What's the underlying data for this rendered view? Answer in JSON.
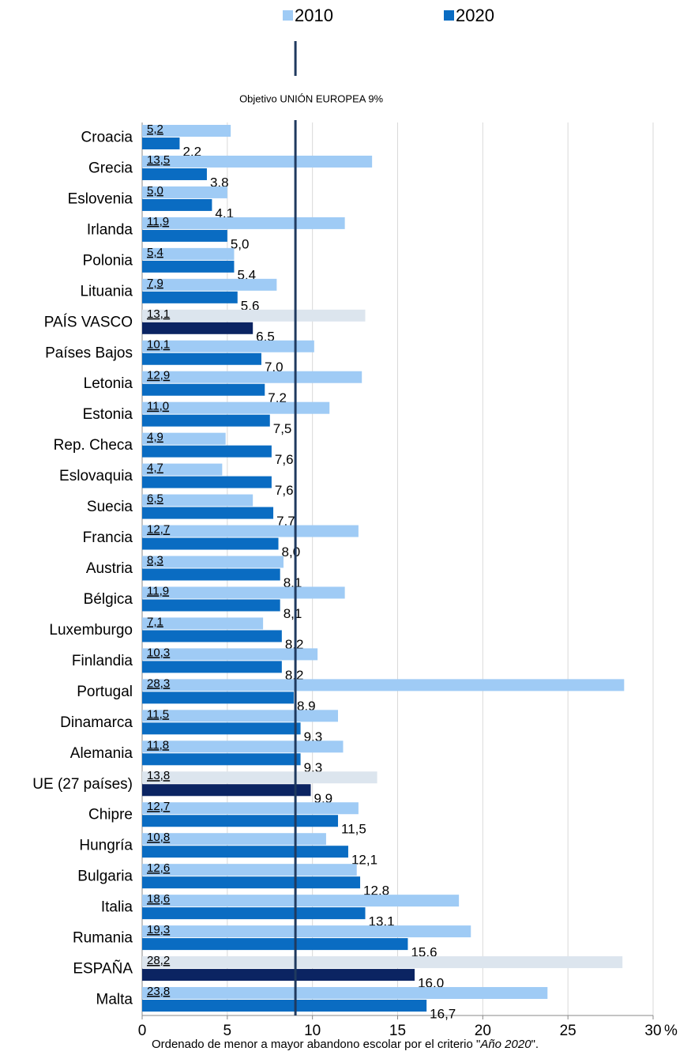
{
  "chart_data": {
    "type": "bar",
    "orientation": "horizontal",
    "categories": [
      "Croacia",
      "Grecia",
      "Eslovenia",
      "Irlanda",
      "Polonia",
      "Lituania",
      "PAÍS VASCO",
      "Países Bajos",
      "Letonia",
      "Estonia",
      "Rep. Checa",
      "Eslovaquia",
      "Suecia",
      "Francia",
      "Austria",
      "Bélgica",
      "Luxemburgo",
      "Finlandia",
      "Portugal",
      "Dinamarca",
      "Alemania",
      "UE (27 países)",
      "Chipre",
      "Hungría",
      "Bulgaria",
      "Italia",
      "Rumania",
      "ESPAÑA",
      "Malta"
    ],
    "series": [
      {
        "name": "2010",
        "color": "#9fcbf5",
        "colors": [
          "#9fcbf5",
          "#9fcbf5",
          "#9fcbf5",
          "#9fcbf5",
          "#9fcbf5",
          "#9fcbf5",
          "#dce5ee",
          "#9fcbf5",
          "#9fcbf5",
          "#9fcbf5",
          "#9fcbf5",
          "#9fcbf5",
          "#9fcbf5",
          "#9fcbf5",
          "#9fcbf5",
          "#9fcbf5",
          "#9fcbf5",
          "#9fcbf5",
          "#9fcbf5",
          "#9fcbf5",
          "#9fcbf5",
          "#dce5ee",
          "#9fcbf5",
          "#9fcbf5",
          "#9fcbf5",
          "#9fcbf5",
          "#9fcbf5",
          "#dce5ee",
          "#9fcbf5"
        ],
        "values": [
          5.2,
          13.5,
          5.0,
          11.9,
          5.4,
          7.9,
          13.1,
          10.1,
          12.9,
          11.0,
          4.9,
          4.7,
          6.5,
          12.7,
          8.3,
          11.9,
          7.1,
          10.3,
          28.3,
          11.5,
          11.8,
          13.8,
          12.7,
          10.8,
          12.6,
          18.6,
          19.3,
          28.2,
          23.8
        ],
        "value_labels": [
          "5,2",
          "13,5",
          "5,0",
          "11,9",
          "5,4",
          "7,9",
          "13,1",
          "10,1",
          "12,9",
          "11,0",
          "4,9",
          "4,7",
          "6,5",
          "12,7",
          "8,3",
          "11,9",
          "7,1",
          "10,3",
          "28,3",
          "11,5",
          "11,8",
          "13,8",
          "12,7",
          "10,8",
          "12,6",
          "18,6",
          "19,3",
          "28,2",
          "23,8"
        ]
      },
      {
        "name": "2020",
        "color": "#0a6cc2",
        "colors": [
          "#0a6cc2",
          "#0a6cc2",
          "#0a6cc2",
          "#0a6cc2",
          "#0a6cc2",
          "#0a6cc2",
          "#0b2462",
          "#0a6cc2",
          "#0a6cc2",
          "#0a6cc2",
          "#0a6cc2",
          "#0a6cc2",
          "#0a6cc2",
          "#0a6cc2",
          "#0a6cc2",
          "#0a6cc2",
          "#0a6cc2",
          "#0a6cc2",
          "#0a6cc2",
          "#0a6cc2",
          "#0a6cc2",
          "#0b2462",
          "#0a6cc2",
          "#0a6cc2",
          "#0a6cc2",
          "#0a6cc2",
          "#0a6cc2",
          "#0b2462",
          "#0a6cc2"
        ],
        "values": [
          2.2,
          3.8,
          4.1,
          5.0,
          5.4,
          5.6,
          6.5,
          7.0,
          7.2,
          7.5,
          7.6,
          7.6,
          7.7,
          8.0,
          8.1,
          8.1,
          8.2,
          8.2,
          8.9,
          9.3,
          9.3,
          9.9,
          11.5,
          12.1,
          12.8,
          13.1,
          15.6,
          16.0,
          16.7
        ],
        "value_labels": [
          "2,2",
          "3,8",
          "4,1",
          "5,0",
          "5,4",
          "5,6",
          "6,5",
          "7,0",
          "7,2",
          "7,5",
          "7,6",
          "7,6",
          "7,7",
          "8,0",
          "8,1",
          "8,1",
          "8,2",
          "8,2",
          "8,9",
          "9,3",
          "9,3",
          "9,9",
          "11,5",
          "12,1",
          "12,8",
          "13,1",
          "15,6",
          "16,0",
          "16,7"
        ]
      }
    ],
    "xlim": [
      0,
      30
    ],
    "xticks": [
      0,
      5,
      10,
      15,
      20,
      25,
      30
    ],
    "x_unit": "%",
    "grid": true,
    "reference_line": {
      "value": 9,
      "label": "Objetivo UNIÓN EUROPEA 9%",
      "color": "#1f3a5f"
    },
    "footnote": [
      "Ordenado de menor a mayor abandono escolar por el criterio \"",
      "Año 2020",
      "\"."
    ]
  }
}
